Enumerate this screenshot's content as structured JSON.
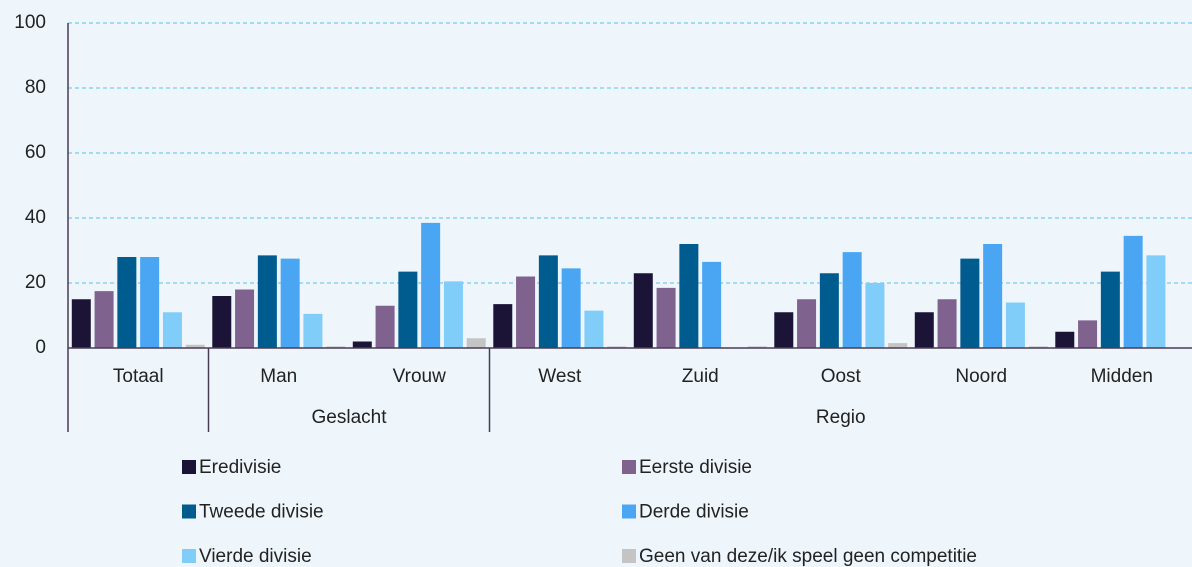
{
  "chart_data": {
    "type": "bar",
    "categories": [
      "Totaal",
      "Man",
      "Vrouw",
      "West",
      "Zuid",
      "Oost",
      "Noord",
      "Midden"
    ],
    "groups": [
      {
        "name": "Geslacht",
        "start": 1,
        "count": 2
      },
      {
        "name": "Regio",
        "start": 3,
        "count": 5
      }
    ],
    "series": [
      {
        "name": "Eredivisie",
        "color": "#1b1436",
        "values": [
          15,
          16,
          2,
          13.5,
          23,
          11,
          11,
          5
        ]
      },
      {
        "name": "Eerste divisie",
        "color": "#80628f",
        "values": [
          17.5,
          18,
          13,
          22,
          18.5,
          15,
          15,
          8.5
        ]
      },
      {
        "name": "Tweede divisie",
        "color": "#005b8e",
        "values": [
          28,
          28.5,
          23.5,
          28.5,
          32,
          23,
          27.5,
          23.5
        ]
      },
      {
        "name": "Derde divisie",
        "color": "#4aa6f3",
        "values": [
          28,
          27.5,
          38.5,
          24.5,
          26.5,
          29.5,
          32,
          34.5
        ]
      },
      {
        "name": "Vierde divisie",
        "color": "#80cdfa",
        "values": [
          11,
          10.5,
          20.5,
          11.5,
          0,
          20,
          14,
          28.5
        ]
      },
      {
        "name": "Geen van deze/ik speel geen competitie",
        "color": "#c4c4c4",
        "values": [
          1,
          0.5,
          3,
          0.5,
          0.5,
          1.5,
          0.5,
          0
        ]
      }
    ],
    "ylim": [
      0,
      100
    ],
    "yticks": [
      0,
      20,
      40,
      60,
      80,
      100
    ],
    "grid": true
  }
}
